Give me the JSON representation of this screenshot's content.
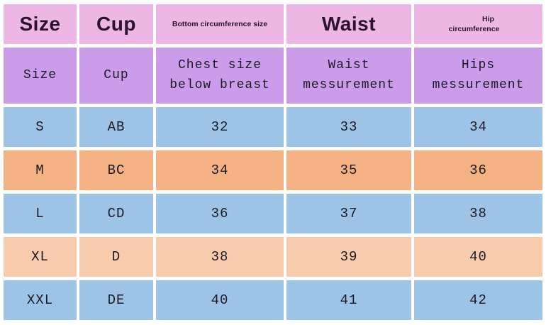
{
  "colors": {
    "header_pink": "#ecb7e5",
    "subheader_purple": "#cb9ce9",
    "row_blue": "#9dc3e6",
    "row_orange": "#f4b183",
    "row_peach": "#f8cbad",
    "gap_white": "#ffffff",
    "header_text": "#2b1133",
    "data_text": "#1b1b26"
  },
  "chart_data": {
    "type": "table",
    "header_row": {
      "size": "Size",
      "cup": "Cup",
      "bottom_circumference": "Bottom circumference size",
      "waist": "Waist",
      "hip_line1": "Hip",
      "hip_line2": "circumference"
    },
    "subheader_row": {
      "size": "Size",
      "cup": "Cup",
      "chest_line1": "Chest size",
      "chest_line2": "below breast",
      "waist_line1": "Waist",
      "waist_line2": "messurement",
      "hips_line1": "Hips",
      "hips_line2": "messurement"
    },
    "rows": [
      {
        "size": "S",
        "cup": "AB",
        "chest": "32",
        "waist": "33",
        "hips": "34"
      },
      {
        "size": "M",
        "cup": "BC",
        "chest": "34",
        "waist": "35",
        "hips": "36"
      },
      {
        "size": "L",
        "cup": "CD",
        "chest": "36",
        "waist": "37",
        "hips": "38"
      },
      {
        "size": "XL",
        "cup": "D",
        "chest": "38",
        "waist": "39",
        "hips": "40"
      },
      {
        "size": "XXL",
        "cup": "DE",
        "chest": "40",
        "waist": "41",
        "hips": "42"
      }
    ],
    "row_fill_order": [
      "blue",
      "orange",
      "blue",
      "peach",
      "blue"
    ]
  }
}
